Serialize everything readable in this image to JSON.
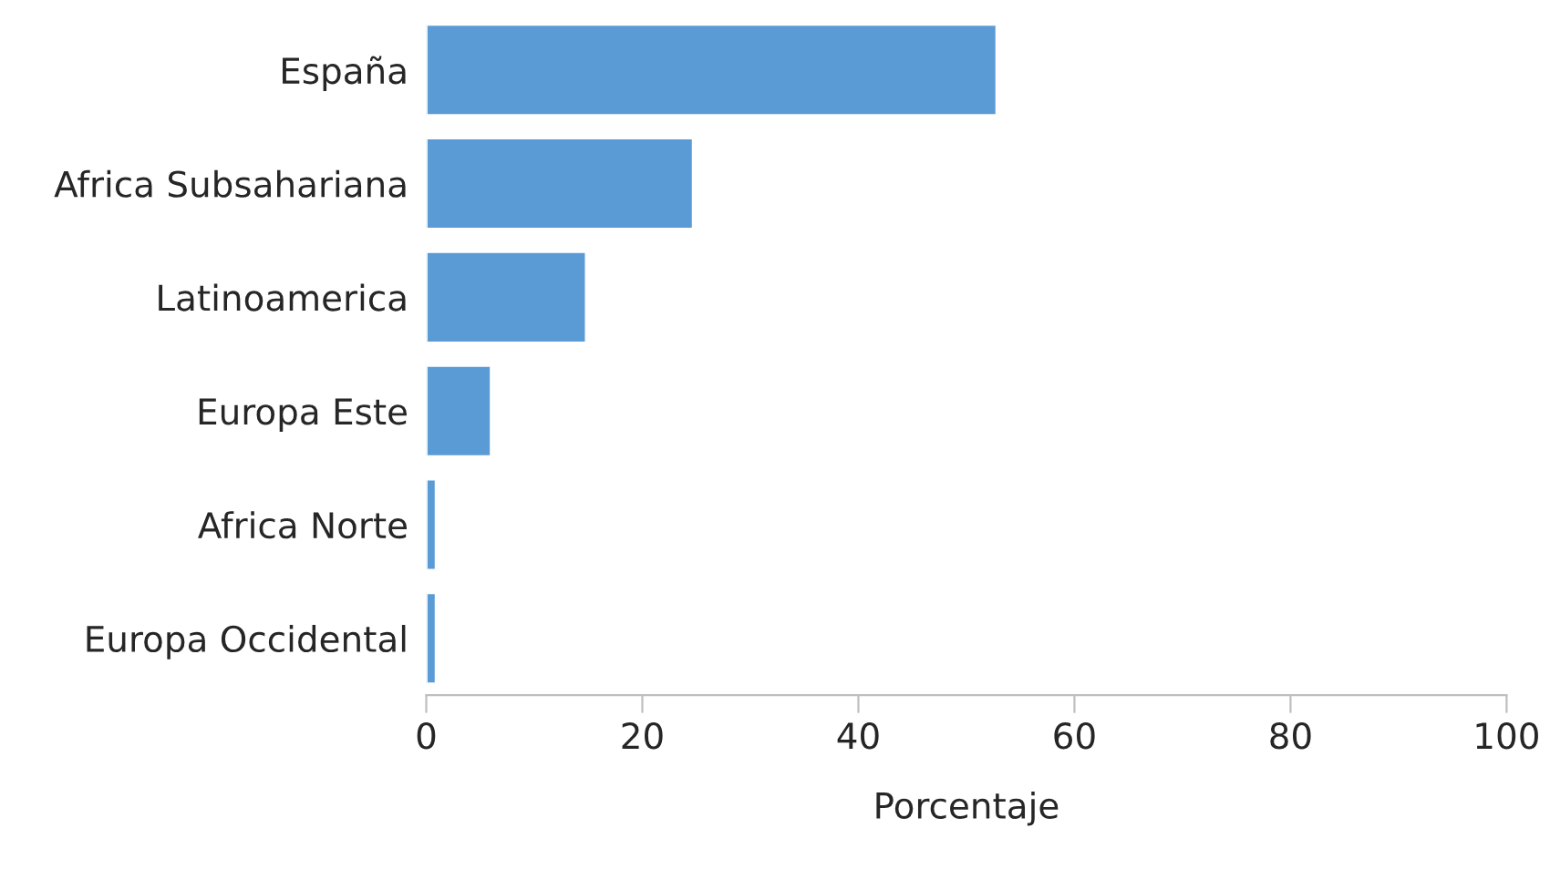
{
  "chart_data": {
    "type": "bar",
    "orientation": "horizontal",
    "xlabel": "Porcentaje",
    "categories": [
      "España",
      "Africa Subsahariana",
      "Latinoamerica",
      "Europa Este",
      "Africa Norte",
      "Europa Occidental"
    ],
    "values": [
      52.8,
      24.7,
      14.8,
      6.0,
      0.9,
      0.9
    ],
    "color": "#5b9bd5",
    "xlim": [
      0,
      100
    ],
    "xticks": [
      0,
      20,
      40,
      60,
      80,
      100
    ],
    "grid": false,
    "legend": false
  }
}
